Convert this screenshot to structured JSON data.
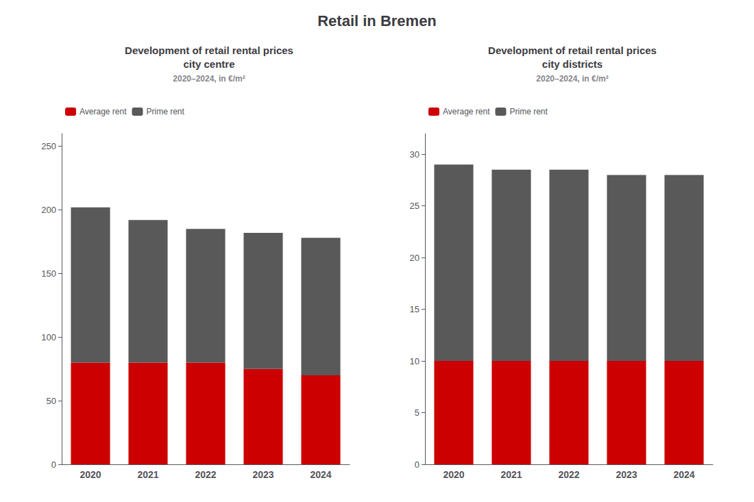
{
  "title": "Retail in Bremen",
  "chart_data": [
    {
      "type": "bar",
      "stacked": true,
      "title": "Development of retail rental prices\ncity centre",
      "subtitle": "2020–2024, in €/m²",
      "categories": [
        "2020",
        "2021",
        "2022",
        "2023",
        "2024"
      ],
      "series": [
        {
          "name": "Average rent",
          "color": "#cc0000",
          "values": [
            80,
            80,
            80,
            75,
            70
          ]
        },
        {
          "name": "Prime rent",
          "color": "#595959",
          "values": [
            122,
            112,
            105,
            107,
            108
          ]
        }
      ],
      "ylim": [
        0,
        260
      ],
      "yticks": [
        0,
        50,
        100,
        150,
        200,
        250
      ],
      "grid": false,
      "legend": "upper left"
    },
    {
      "type": "bar",
      "stacked": true,
      "title": "Development of retail rental prices\ncity districts",
      "subtitle": "2020–2024, in €/m²",
      "categories": [
        "2020",
        "2021",
        "2022",
        "2023",
        "2024"
      ],
      "series": [
        {
          "name": "Average rent",
          "color": "#cc0000",
          "values": [
            10,
            10,
            10,
            10,
            10
          ]
        },
        {
          "name": "Prime rent",
          "color": "#595959",
          "values": [
            19,
            18.5,
            18.5,
            18,
            18
          ]
        }
      ],
      "ylim": [
        0,
        32
      ],
      "yticks": [
        0,
        5,
        10,
        15,
        20,
        25,
        30
      ],
      "grid": false,
      "legend": "upper left"
    }
  ]
}
